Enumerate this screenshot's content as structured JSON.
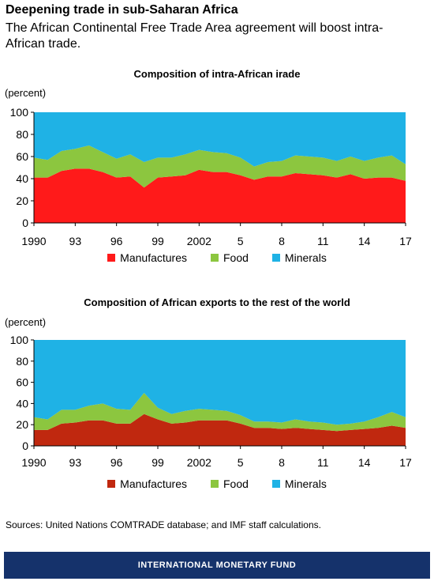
{
  "header": {
    "title": "Deepening trade in sub-Saharan Africa",
    "subtitle": "The African Continental Free Trade Area agreement  will boost intra-African trade."
  },
  "sources": "Sources: United Nations COMTRADE database; and IMF staff calculations.",
  "footer": "INTERNATIONAL MONETARY FUND",
  "chart_data": [
    {
      "type": "area",
      "stacked": true,
      "title": "Composition of intra-African irade",
      "ylabel": "(percent)",
      "ylim": [
        0,
        100
      ],
      "yticks": [
        0,
        20,
        40,
        60,
        80,
        100
      ],
      "xlim": [
        1990,
        2017
      ],
      "xticks": [
        {
          "value": 1990,
          "label": "1990"
        },
        {
          "value": 1993,
          "label": "93"
        },
        {
          "value": 1996,
          "label": "96"
        },
        {
          "value": 1999,
          "label": "99"
        },
        {
          "value": 2002,
          "label": "2002"
        },
        {
          "value": 2005,
          "label": "5"
        },
        {
          "value": 2008,
          "label": "8"
        },
        {
          "value": 2011,
          "label": "11"
        },
        {
          "value": 2014,
          "label": "14"
        },
        {
          "value": 2017,
          "label": "17"
        }
      ],
      "x": [
        1990,
        1991,
        1992,
        1993,
        1994,
        1995,
        1996,
        1997,
        1998,
        1999,
        2000,
        2001,
        2002,
        2003,
        2004,
        2005,
        2006,
        2007,
        2008,
        2009,
        2010,
        2011,
        2012,
        2013,
        2014,
        2015,
        2016,
        2017
      ],
      "series": [
        {
          "name": "Manufactures",
          "color": "#ff1a1a",
          "values": [
            41,
            41,
            47,
            49,
            49,
            46,
            41,
            42,
            32,
            41,
            42,
            43,
            48,
            46,
            46,
            43,
            39,
            42,
            42,
            45,
            44,
            43,
            41,
            44,
            40,
            41,
            41,
            38
          ]
        },
        {
          "name": "Food",
          "color": "#8cc63f",
          "values": [
            18,
            16,
            18,
            18,
            21,
            18,
            17,
            20,
            23,
            18,
            17,
            19,
            18,
            18,
            17,
            16,
            12,
            13,
            14,
            16,
            16,
            16,
            15,
            16,
            16,
            18,
            20,
            15
          ]
        },
        {
          "name": "Minerals",
          "color": "#1fb2e5",
          "values": [
            41,
            43,
            35,
            33,
            30,
            36,
            42,
            38,
            45,
            41,
            41,
            38,
            34,
            36,
            37,
            41,
            49,
            45,
            44,
            39,
            40,
            41,
            44,
            40,
            44,
            41,
            39,
            47
          ]
        }
      ],
      "legend": "bottom",
      "grid": false
    },
    {
      "type": "area",
      "stacked": true,
      "title": "Composition of African exports to the rest of the world",
      "ylabel": "(percent)",
      "ylim": [
        0,
        100
      ],
      "yticks": [
        0,
        20,
        40,
        60,
        80,
        100
      ],
      "xlim": [
        1990,
        2017
      ],
      "xticks": [
        {
          "value": 1990,
          "label": "1990"
        },
        {
          "value": 1993,
          "label": "93"
        },
        {
          "value": 1996,
          "label": "96"
        },
        {
          "value": 1999,
          "label": "99"
        },
        {
          "value": 2002,
          "label": "2002"
        },
        {
          "value": 2005,
          "label": "5"
        },
        {
          "value": 2008,
          "label": "8"
        },
        {
          "value": 2011,
          "label": "11"
        },
        {
          "value": 2014,
          "label": "14"
        },
        {
          "value": 2017,
          "label": "17"
        }
      ],
      "x": [
        1990,
        1991,
        1992,
        1993,
        1994,
        1995,
        1996,
        1997,
        1998,
        1999,
        2000,
        2001,
        2002,
        2003,
        2004,
        2005,
        2006,
        2007,
        2008,
        2009,
        2010,
        2011,
        2012,
        2013,
        2014,
        2015,
        2016,
        2017
      ],
      "series": [
        {
          "name": "Manufactures",
          "color": "#c0280f",
          "values": [
            15,
            15,
            21,
            22,
            24,
            24,
            21,
            21,
            30,
            25,
            21,
            22,
            24,
            24,
            24,
            21,
            17,
            17,
            16,
            17,
            16,
            15,
            14,
            15,
            16,
            17,
            19,
            17
          ]
        },
        {
          "name": "Food",
          "color": "#8cc63f",
          "values": [
            12,
            10,
            13,
            12,
            14,
            16,
            14,
            13,
            20,
            11,
            9,
            11,
            11,
            10,
            9,
            8,
            6,
            6,
            6,
            8,
            7,
            7,
            6,
            6,
            7,
            10,
            13,
            10
          ]
        },
        {
          "name": "Minerals",
          "color": "#1fb2e5",
          "values": [
            73,
            75,
            66,
            66,
            62,
            60,
            65,
            66,
            50,
            64,
            70,
            67,
            65,
            66,
            67,
            71,
            77,
            77,
            78,
            75,
            77,
            78,
            80,
            79,
            77,
            73,
            68,
            73
          ]
        }
      ],
      "legend": "bottom",
      "grid": false
    }
  ]
}
